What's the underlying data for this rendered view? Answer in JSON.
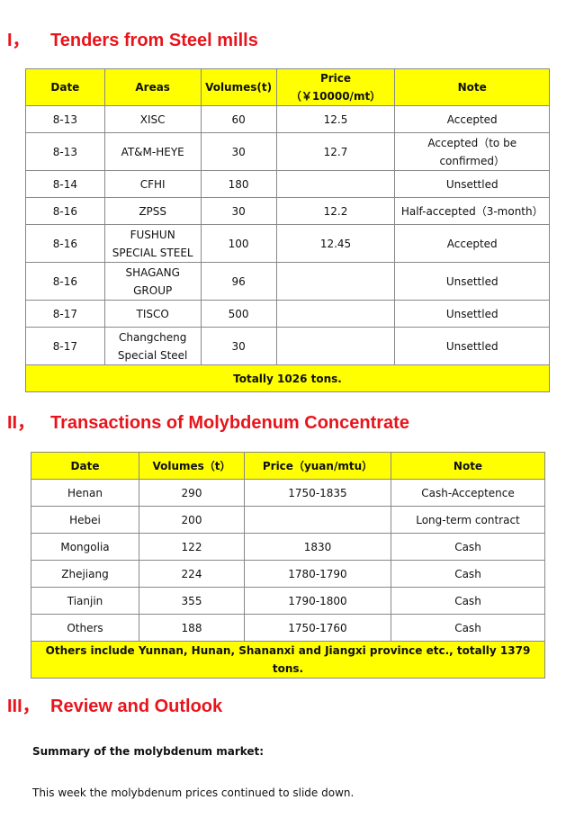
{
  "section1": {
    "num": "I，",
    "title": "Tenders from Steel mills",
    "headers": [
      "Date",
      "Areas",
      "Volumes(t)",
      "Price（￥10000/mt）",
      "Note"
    ],
    "rows": [
      [
        "8-13",
        "XISC",
        "60",
        "12.5",
        "Accepted"
      ],
      [
        "8-13",
        "AT&M-HEYE",
        "30",
        "12.7",
        "Accepted（to be confirmed）"
      ],
      [
        "8-14",
        "CFHI",
        "180",
        "",
        "Unsettled"
      ],
      [
        "8-16",
        "ZPSS",
        "30",
        "12.2",
        "Half-accepted（3-month）"
      ],
      [
        "8-16",
        "FUSHUN SPECIAL STEEL",
        "100",
        "12.45",
        "Accepted"
      ],
      [
        "8-16",
        "SHAGANG GROUP",
        "96",
        "",
        "Unsettled"
      ],
      [
        "8-17",
        "TISCO",
        "500",
        "",
        "Unsettled"
      ],
      [
        "8-17",
        "Changcheng Special Steel",
        "30",
        "",
        "Unsettled"
      ]
    ],
    "total": "Totally 1026 tons."
  },
  "section2": {
    "num": "II，",
    "title": "Transactions of Molybdenum Concentrate",
    "headers": [
      "Date",
      "Volumes（t）",
      "Price（yuan/mtu）",
      "Note"
    ],
    "rows": [
      [
        "Henan",
        "290",
        "1750-1835",
        "Cash-Acceptence"
      ],
      [
        "Hebei",
        "200",
        "",
        "Long-term contract"
      ],
      [
        "Mongolia",
        "122",
        "1830",
        "Cash"
      ],
      [
        "Zhejiang",
        "224",
        "1780-1790",
        "Cash"
      ],
      [
        "Tianjin",
        "355",
        "1790-1800",
        "Cash"
      ],
      [
        "Others",
        "188",
        "1750-1760",
        "Cash"
      ]
    ],
    "total": "Others include Yunnan, Hunan, Shananxi and Jiangxi province etc., totally 1379 tons."
  },
  "section3": {
    "num": "III，",
    "title": "Review and Outlook",
    "summary": "Summary of the molybdenum market:",
    "text": "This week the molybdenum prices continued to slide down."
  },
  "colors": {
    "heading": "#e8141b",
    "header_fill": "#ffff00"
  }
}
